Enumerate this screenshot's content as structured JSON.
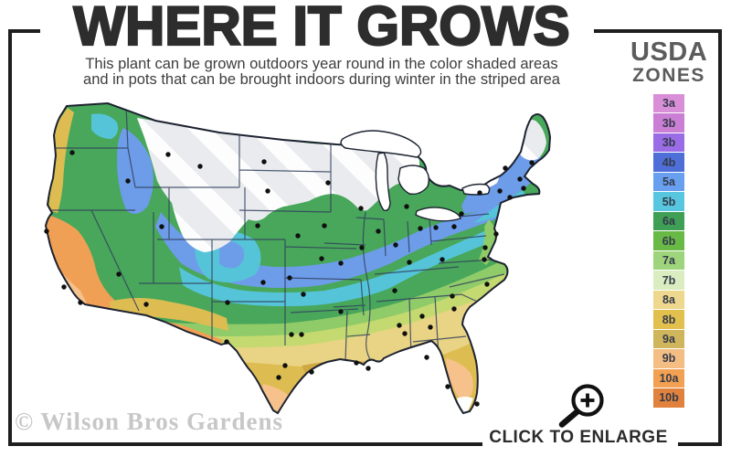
{
  "header": {
    "title": "WHERE IT GROWS",
    "subtitle_line1": "This plant can be grown outdoors year round in the color shaded areas",
    "subtitle_line2": "and in pots that can be brought indoors during winter in the striped area"
  },
  "legend": {
    "title_line1": "USDA",
    "title_line2": "ZONES",
    "zones": [
      {
        "label": "3a",
        "color": "#d98fd8"
      },
      {
        "label": "3b",
        "color": "#cb7fd4"
      },
      {
        "label": "3b",
        "color": "#9a6de6"
      },
      {
        "label": "4b",
        "color": "#4f6fd8"
      },
      {
        "label": "5a",
        "color": "#68a0ef"
      },
      {
        "label": "5b",
        "color": "#57c6de"
      },
      {
        "label": "6a",
        "color": "#3f9f55"
      },
      {
        "label": "6b",
        "color": "#69b947"
      },
      {
        "label": "7a",
        "color": "#9ed47b"
      },
      {
        "label": "7b",
        "color": "#d9edc0"
      },
      {
        "label": "8a",
        "color": "#eed88d"
      },
      {
        "label": "8b",
        "color": "#e2c04e"
      },
      {
        "label": "9a",
        "color": "#cfb55c"
      },
      {
        "label": "9b",
        "color": "#f4bd83"
      },
      {
        "label": "10a",
        "color": "#f2a152"
      },
      {
        "label": "10b",
        "color": "#e0823d"
      }
    ]
  },
  "watermark": "© Wilson Bros Gardens",
  "enlarge": {
    "label": "CLICK TO ENLARGE"
  },
  "icons": {
    "enlarge": "magnifying-glass-plus-icon"
  },
  "map": {
    "palette": {
      "base_green": "#48a75a",
      "light_green": "#8fcb68",
      "yellow_green": "#c4da70",
      "pale_gold": "#e9d384",
      "gold": "#ddbd51",
      "dark_gold": "#cfa844",
      "peach": "#f6c18b",
      "orange": "#f0a055",
      "blue": "#6d9ce9",
      "cyan": "#55c4d8",
      "striped_gray": "#e9ebee",
      "white": "#ffffff",
      "outline": "#1c2230",
      "stateline": "#33415e",
      "dot": "#101010"
    },
    "city_markers": [
      [
        79,
        167
      ],
      [
        140,
        198
      ],
      [
        51,
        253
      ],
      [
        70,
        314
      ],
      [
        88,
        331
      ],
      [
        130,
        300
      ],
      [
        160,
        333
      ],
      [
        177,
        248
      ],
      [
        184,
        169
      ],
      [
        219,
        182
      ],
      [
        282,
        247
      ],
      [
        288,
        309
      ],
      [
        249,
        331
      ],
      [
        289,
        177
      ],
      [
        293,
        209
      ],
      [
        359,
        200
      ],
      [
        355,
        247
      ],
      [
        326,
        258
      ],
      [
        352,
        283
      ],
      [
        317,
        304
      ],
      [
        395,
        228
      ],
      [
        414,
        253
      ],
      [
        433,
        268
      ],
      [
        396,
        271
      ],
      [
        445,
        226
      ],
      [
        460,
        250
      ],
      [
        477,
        249
      ],
      [
        497,
        248
      ],
      [
        332,
        322
      ],
      [
        373,
        341
      ],
      [
        319,
        366
      ],
      [
        330,
        366
      ],
      [
        312,
        400
      ],
      [
        341,
        407
      ],
      [
        305,
        413
      ],
      [
        248,
        374
      ],
      [
        390,
        397
      ],
      [
        403,
        403
      ],
      [
        432,
        318
      ],
      [
        437,
        356
      ],
      [
        443,
        365
      ],
      [
        373,
        288
      ],
      [
        448,
        287
      ],
      [
        462,
        346
      ],
      [
        471,
        358
      ],
      [
        484,
        284
      ],
      [
        495,
        324
      ],
      [
        497,
        338
      ],
      [
        530,
        284
      ],
      [
        533,
        311
      ],
      [
        467,
        391
      ],
      [
        490,
        423
      ],
      [
        522,
        442
      ],
      [
        553,
        184
      ],
      [
        569,
        196
      ],
      [
        582,
        178
      ],
      [
        547,
        209
      ],
      [
        525,
        211
      ],
      [
        558,
        216
      ],
      [
        543,
        256
      ],
      [
        531,
        271
      ],
      [
        573,
        206
      ],
      [
        505,
        234
      ]
    ]
  }
}
